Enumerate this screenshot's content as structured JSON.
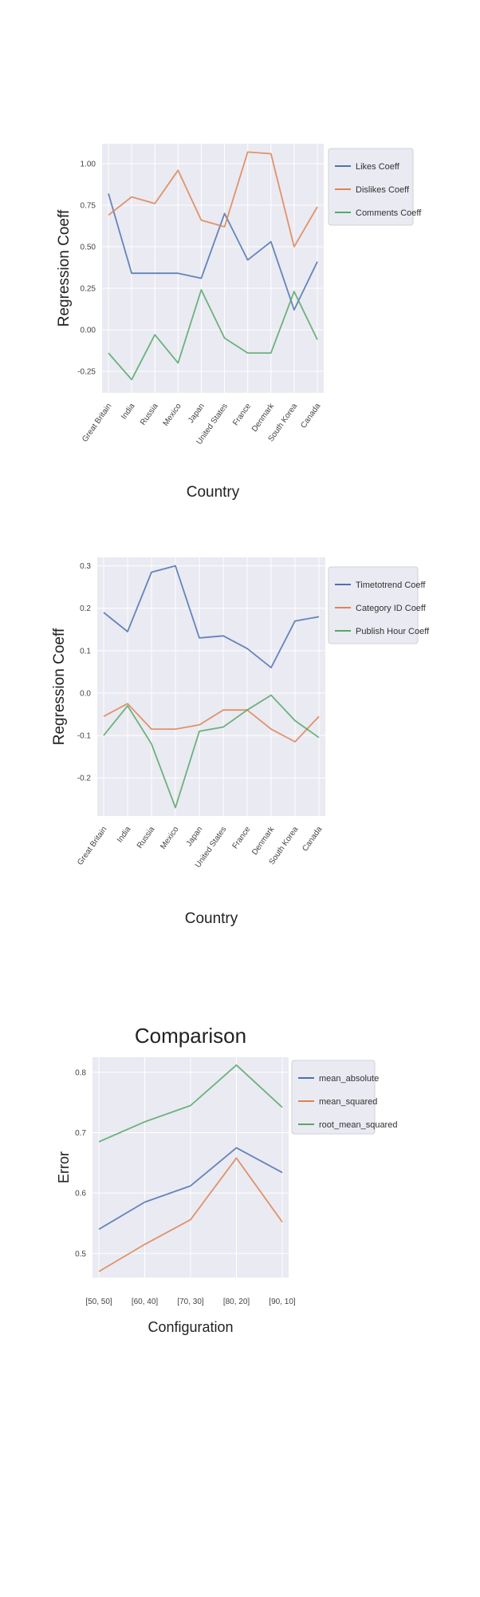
{
  "chart_data": [
    {
      "type": "line",
      "title": "",
      "xlabel": "Country",
      "ylabel": "Regression Coeff",
      "categories": [
        "Great Britain",
        "India",
        "Russia",
        "Mexico",
        "Japan",
        "United States",
        "France",
        "Denmark",
        "South Korea",
        "Canada"
      ],
      "yticks": [
        "-0.25",
        "0.00",
        "0.25",
        "0.50",
        "0.75",
        "1.00"
      ],
      "ylim": [
        -0.38,
        1.12
      ],
      "grid": true,
      "legend_position": "upper-right-outside",
      "series": [
        {
          "name": "Likes Coeff",
          "color": "#4c72b0",
          "values": [
            0.82,
            0.34,
            0.34,
            0.34,
            0.31,
            0.7,
            0.42,
            0.53,
            0.12,
            0.41
          ]
        },
        {
          "name": "Dislikes Coeff",
          "color": "#dd8452",
          "values": [
            0.69,
            0.8,
            0.76,
            0.96,
            0.66,
            0.62,
            1.07,
            1.06,
            0.5,
            0.74
          ]
        },
        {
          "name": "Comments Coeff",
          "color": "#55a868",
          "values": [
            -0.14,
            -0.3,
            -0.03,
            -0.2,
            0.24,
            -0.05,
            -0.14,
            -0.14,
            0.23,
            -0.06
          ]
        }
      ]
    },
    {
      "type": "line",
      "title": "",
      "xlabel": "Country",
      "ylabel": "Regression Coeff",
      "categories": [
        "Great Britain",
        "India",
        "Russia",
        "Mexico",
        "Japan",
        "United States",
        "France",
        "Denmark",
        "South Korea",
        "Canada"
      ],
      "yticks": [
        "-0.2",
        "-0.1",
        "0.0",
        "0.1",
        "0.2",
        "0.3"
      ],
      "ylim": [
        -0.29,
        0.32
      ],
      "grid": true,
      "legend_position": "upper-right-outside",
      "series": [
        {
          "name": "Timetotrend Coeff",
          "color": "#4c72b0",
          "values": [
            0.19,
            0.145,
            0.285,
            0.3,
            0.13,
            0.135,
            0.105,
            0.06,
            0.17,
            0.18
          ]
        },
        {
          "name": "Category ID Coeff",
          "color": "#dd8452",
          "values": [
            -0.055,
            -0.025,
            -0.085,
            -0.085,
            -0.075,
            -0.04,
            -0.04,
            -0.085,
            -0.115,
            -0.055
          ]
        },
        {
          "name": "Publish Hour Coeff",
          "color": "#55a868",
          "values": [
            -0.1,
            -0.03,
            -0.12,
            -0.27,
            -0.09,
            -0.08,
            -0.04,
            -0.005,
            -0.065,
            -0.105
          ]
        }
      ]
    },
    {
      "type": "line",
      "title": "Comparison",
      "xlabel": "Configuration",
      "ylabel": "Error",
      "categories": [
        "[50, 50]",
        "[60, 40]",
        "[70, 30]",
        "[80, 20]",
        "[90, 10]"
      ],
      "yticks": [
        "0.5",
        "0.6",
        "0.7",
        "0.8"
      ],
      "ylim": [
        0.46,
        0.825
      ],
      "grid": true,
      "legend_position": "upper-right-outside",
      "series": [
        {
          "name": "mean_absolute",
          "color": "#4c72b0",
          "values": [
            0.54,
            0.585,
            0.612,
            0.675,
            0.634
          ]
        },
        {
          "name": "mean_squared",
          "color": "#dd8452",
          "values": [
            0.47,
            0.515,
            0.556,
            0.658,
            0.552
          ]
        },
        {
          "name": "root_mean_squared",
          "color": "#55a868",
          "values": [
            0.685,
            0.718,
            0.745,
            0.812,
            0.742
          ]
        }
      ]
    }
  ]
}
